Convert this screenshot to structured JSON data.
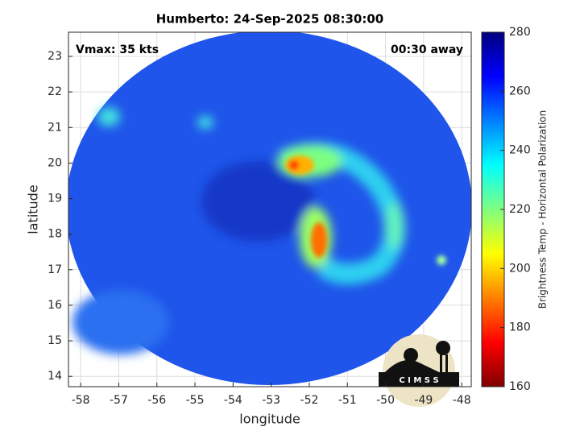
{
  "chart_data": {
    "type": "image",
    "title": "Humberto: 24-Sep-2025 08:30:00",
    "x_label": "longitude",
    "y_label": "latitude",
    "annotations": [
      "Vmax: 35 kts",
      "00:30 away"
    ],
    "logo_text": "C I M S S",
    "xlim": [
      -58.32,
      -47.75
    ],
    "xticks": [
      -58,
      -57,
      -56,
      -55,
      -54,
      -53,
      -52,
      -51,
      -50,
      -49,
      -48
    ],
    "ylim": [
      13.71,
      23.68
    ],
    "yticks": [
      14,
      15,
      16,
      17,
      18,
      19,
      20,
      21,
      22,
      23
    ],
    "grid": true,
    "colorbar": {
      "label": "Brightness Temp - Horizontal Polarization",
      "clim": [
        160,
        280
      ],
      "ticks": [
        160,
        180,
        200,
        220,
        240,
        260,
        280
      ],
      "colormap": "jet"
    }
  }
}
